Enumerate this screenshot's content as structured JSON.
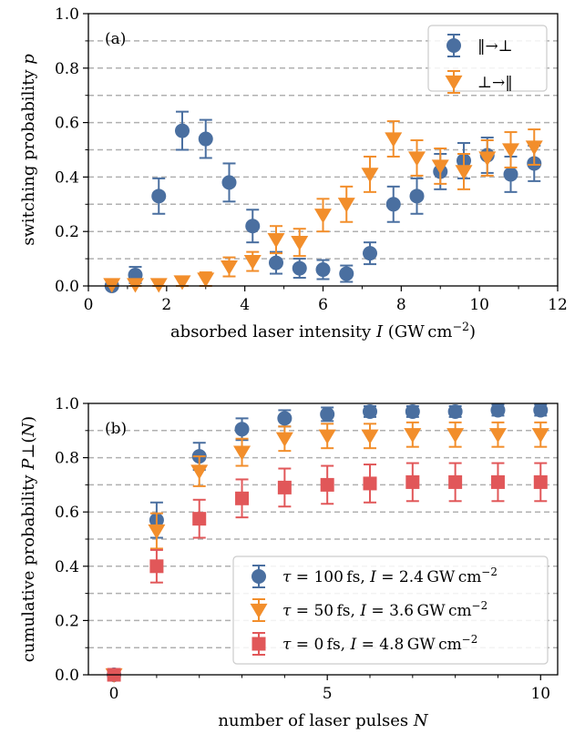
{
  "chart_data": [
    {
      "type": "scatter",
      "panel_label": "(a)",
      "xlabel": "absorbed laser intensity I (GW cm−2)",
      "ylabel": "switching probability p",
      "xlim": [
        0,
        12
      ],
      "ylim": [
        0,
        1
      ],
      "xticks": [
        "0",
        "2",
        "4",
        "6",
        "8",
        "10",
        "12"
      ],
      "yticks": [
        "0.0",
        "0.2",
        "0.4",
        "0.6",
        "0.8",
        "1.0"
      ],
      "grid": "horizontal dashed",
      "legend_position": "top-right",
      "series": [
        {
          "name": "‖→⊥",
          "marker": "circle",
          "color": "#4a6fa0",
          "x": [
            0.6,
            1.2,
            1.8,
            2.4,
            3.0,
            3.6,
            4.2,
            4.8,
            5.4,
            6.0,
            6.6,
            7.2,
            7.8,
            8.4,
            9.0,
            9.6,
            10.2,
            10.8,
            11.4
          ],
          "y": [
            0.0,
            0.04,
            0.33,
            0.57,
            0.54,
            0.38,
            0.22,
            0.085,
            0.065,
            0.06,
            0.045,
            0.12,
            0.3,
            0.33,
            0.42,
            0.46,
            0.48,
            0.41,
            0.45
          ],
          "err": [
            0.01,
            0.03,
            0.065,
            0.07,
            0.07,
            0.07,
            0.06,
            0.04,
            0.035,
            0.035,
            0.03,
            0.04,
            0.065,
            0.065,
            0.065,
            0.065,
            0.065,
            0.065,
            0.065
          ]
        },
        {
          "name": "⊥→‖",
          "marker": "triangle-down",
          "color": "#f28e2b",
          "x": [
            0.6,
            1.2,
            1.8,
            2.4,
            3.0,
            3.6,
            4.2,
            4.8,
            5.4,
            6.0,
            6.6,
            7.2,
            7.8,
            8.4,
            9.0,
            9.6,
            10.2,
            10.8,
            11.4
          ],
          "y": [
            0.005,
            0.005,
            0.005,
            0.015,
            0.025,
            0.07,
            0.09,
            0.17,
            0.16,
            0.26,
            0.3,
            0.41,
            0.54,
            0.47,
            0.44,
            0.42,
            0.47,
            0.5,
            0.51
          ],
          "err": [
            0.015,
            0.015,
            0.015,
            0.02,
            0.025,
            0.035,
            0.035,
            0.05,
            0.05,
            0.06,
            0.065,
            0.065,
            0.065,
            0.065,
            0.065,
            0.065,
            0.065,
            0.065,
            0.065
          ]
        }
      ]
    },
    {
      "type": "scatter",
      "panel_label": "(b)",
      "xlabel": "number of laser pulses N",
      "ylabel": "cumulative probability P⊥(N)",
      "xlim": [
        -0.6,
        10.4
      ],
      "ylim": [
        0,
        1
      ],
      "xticks": [
        "0",
        "5",
        "10"
      ],
      "yticks": [
        "0.0",
        "0.2",
        "0.4",
        "0.6",
        "0.8",
        "1.0"
      ],
      "grid": "horizontal dashed",
      "legend_position": "bottom-right",
      "series": [
        {
          "name": "τ = 100 fs, I = 2.4 GW cm−2",
          "marker": "circle",
          "color": "#4a6fa0",
          "x": [
            0,
            1,
            2,
            3,
            4,
            5,
            6,
            7,
            8,
            9,
            10
          ],
          "y": [
            0.0,
            0.57,
            0.805,
            0.905,
            0.945,
            0.96,
            0.97,
            0.97,
            0.97,
            0.975,
            0.975
          ],
          "err": [
            0.01,
            0.065,
            0.05,
            0.04,
            0.03,
            0.025,
            0.02,
            0.02,
            0.02,
            0.02,
            0.02
          ]
        },
        {
          "name": "τ = 50 fs, I = 3.6 GW cm−2",
          "marker": "triangle-down",
          "color": "#f28e2b",
          "x": [
            0,
            1,
            2,
            3,
            4,
            5,
            6,
            7,
            8,
            9,
            10
          ],
          "y": [
            0.0,
            0.53,
            0.75,
            0.82,
            0.87,
            0.88,
            0.88,
            0.885,
            0.885,
            0.885,
            0.885
          ],
          "err": [
            0.01,
            0.065,
            0.055,
            0.05,
            0.045,
            0.045,
            0.045,
            0.045,
            0.045,
            0.045,
            0.045
          ]
        },
        {
          "name": "τ = 0 fs, I = 4.8 GW cm−2",
          "marker": "square",
          "color": "#e15759",
          "x": [
            0,
            1,
            2,
            3,
            4,
            5,
            6,
            7,
            8,
            9,
            10
          ],
          "y": [
            0.0,
            0.4,
            0.575,
            0.65,
            0.69,
            0.7,
            0.705,
            0.71,
            0.71,
            0.71,
            0.71
          ],
          "err": [
            0.01,
            0.06,
            0.07,
            0.07,
            0.07,
            0.07,
            0.07,
            0.07,
            0.07,
            0.07,
            0.07
          ]
        }
      ]
    }
  ]
}
